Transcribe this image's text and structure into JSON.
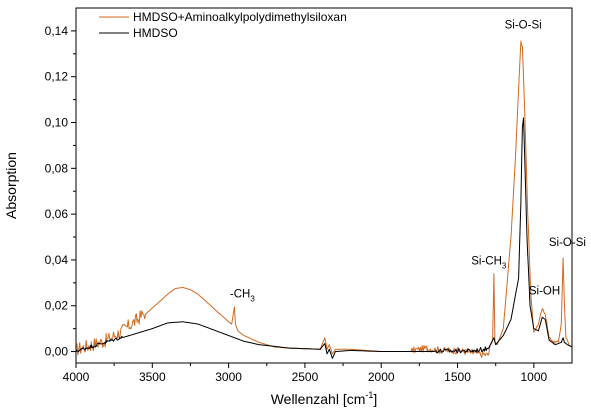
{
  "chart_data": {
    "type": "line",
    "xlabel": "Wellenzahl [cm",
    "xlabel_sup": "-1",
    "xlabel_suffix": "]",
    "ylabel": "Absorption",
    "xlim": [
      4000,
      750
    ],
    "ylim": [
      -0.005,
      0.15
    ],
    "x_ticks": [
      4000,
      3500,
      3000,
      2500,
      2000,
      1500,
      1000
    ],
    "x_tick_labels": [
      "4000",
      "3500",
      "3000",
      "2500",
      "2000",
      "1500",
      "1000"
    ],
    "y_ticks": [
      0.0,
      0.02,
      0.04,
      0.06,
      0.08,
      0.1,
      0.12,
      0.14
    ],
    "y_tick_labels": [
      "0,00",
      "0,02",
      "0,04",
      "0,06",
      "0,08",
      "0,10",
      "0,12",
      "0,14"
    ],
    "grid": false,
    "legend_position": "top-left",
    "series": [
      {
        "name": "HMDSO+Aminoalkylpolydimethylsiloxan",
        "color": "#d2691e",
        "noisy_ranges": [
          [
            4000,
            3550,
            0.006
          ],
          [
            1800,
            1280,
            0.003
          ],
          [
            1100,
            750,
            0.001
          ]
        ],
        "points": [
          [
            4000,
            0.0
          ],
          [
            3900,
            0.002
          ],
          [
            3800,
            0.004
          ],
          [
            3700,
            0.008
          ],
          [
            3600,
            0.013
          ],
          [
            3500,
            0.019
          ],
          [
            3400,
            0.025
          ],
          [
            3350,
            0.0275
          ],
          [
            3300,
            0.028
          ],
          [
            3250,
            0.027
          ],
          [
            3200,
            0.025
          ],
          [
            3100,
            0.019
          ],
          [
            3000,
            0.013
          ],
          [
            2980,
            0.012
          ],
          [
            2962,
            0.0195
          ],
          [
            2955,
            0.012
          ],
          [
            2940,
            0.009
          ],
          [
            2900,
            0.007
          ],
          [
            2800,
            0.004
          ],
          [
            2700,
            0.002
          ],
          [
            2600,
            0.0015
          ],
          [
            2400,
            0.001
          ],
          [
            2370,
            0.006
          ],
          [
            2355,
            0.001
          ],
          [
            2340,
            0.003
          ],
          [
            2320,
            -0.001
          ],
          [
            2300,
            0.001
          ],
          [
            2200,
            0.001
          ],
          [
            2000,
            0.0
          ],
          [
            1800,
            0.0
          ],
          [
            1700,
            0.001
          ],
          [
            1600,
            0.0
          ],
          [
            1500,
            0.0
          ],
          [
            1400,
            -0.001
          ],
          [
            1300,
            -0.002
          ],
          [
            1270,
            0.005
          ],
          [
            1262,
            0.034
          ],
          [
            1255,
            0.004
          ],
          [
            1240,
            0.003
          ],
          [
            1200,
            0.01
          ],
          [
            1150,
            0.05
          ],
          [
            1120,
            0.085
          ],
          [
            1100,
            0.115
          ],
          [
            1085,
            0.135
          ],
          [
            1075,
            0.133
          ],
          [
            1060,
            0.105
          ],
          [
            1040,
            0.06
          ],
          [
            1020,
            0.025
          ],
          [
            1000,
            0.008
          ],
          [
            970,
            0.012
          ],
          [
            945,
            0.019
          ],
          [
            925,
            0.016
          ],
          [
            900,
            0.006
          ],
          [
            870,
            0.004
          ],
          [
            840,
            0.004
          ],
          [
            820,
            0.012
          ],
          [
            808,
            0.041
          ],
          [
            800,
            0.02
          ],
          [
            790,
            0.006
          ],
          [
            770,
            0.003
          ],
          [
            750,
            0.002
          ]
        ]
      },
      {
        "name": "HMDSO",
        "color": "#000000",
        "noisy_ranges": [
          [
            4000,
            3700,
            0.0015
          ],
          [
            1650,
            1300,
            0.002
          ]
        ],
        "points": [
          [
            4000,
            0.0
          ],
          [
            3900,
            0.002
          ],
          [
            3800,
            0.004
          ],
          [
            3700,
            0.006
          ],
          [
            3600,
            0.008
          ],
          [
            3500,
            0.01
          ],
          [
            3400,
            0.0125
          ],
          [
            3300,
            0.013
          ],
          [
            3200,
            0.012
          ],
          [
            3100,
            0.0095
          ],
          [
            3000,
            0.007
          ],
          [
            2900,
            0.0045
          ],
          [
            2800,
            0.003
          ],
          [
            2600,
            0.0015
          ],
          [
            2400,
            0.001
          ],
          [
            2370,
            0.0035
          ],
          [
            2355,
            -0.001
          ],
          [
            2340,
            0.001
          ],
          [
            2320,
            -0.003
          ],
          [
            2300,
            0.0
          ],
          [
            2200,
            0.0005
          ],
          [
            2000,
            0.0
          ],
          [
            1800,
            0.0
          ],
          [
            1600,
            0.0
          ],
          [
            1500,
            0.0
          ],
          [
            1400,
            0.0
          ],
          [
            1300,
            0.001
          ],
          [
            1262,
            0.006
          ],
          [
            1250,
            0.003
          ],
          [
            1200,
            0.007
          ],
          [
            1150,
            0.014
          ],
          [
            1100,
            0.032
          ],
          [
            1085,
            0.065
          ],
          [
            1075,
            0.098
          ],
          [
            1068,
            0.102
          ],
          [
            1060,
            0.085
          ],
          [
            1045,
            0.05
          ],
          [
            1025,
            0.02
          ],
          [
            1000,
            0.01
          ],
          [
            970,
            0.009
          ],
          [
            945,
            0.015
          ],
          [
            925,
            0.014
          ],
          [
            900,
            0.005
          ],
          [
            860,
            0.003
          ],
          [
            820,
            0.004
          ],
          [
            808,
            0.006
          ],
          [
            800,
            0.004
          ],
          [
            780,
            0.003
          ],
          [
            750,
            0.002
          ]
        ]
      }
    ],
    "annotations": [
      {
        "text": "-CH",
        "sub": "3",
        "x": 2910,
        "y": 0.0235
      },
      {
        "text": "Si-CH",
        "sub": "3",
        "x": 1295,
        "y": 0.038
      },
      {
        "text": "Si-O-Si",
        "x": 1070,
        "y": 0.141
      },
      {
        "text": "Si-OH",
        "x": 930,
        "y": 0.025
      },
      {
        "text": "Si-O-Si",
        "x": 780,
        "y": 0.046
      }
    ]
  }
}
